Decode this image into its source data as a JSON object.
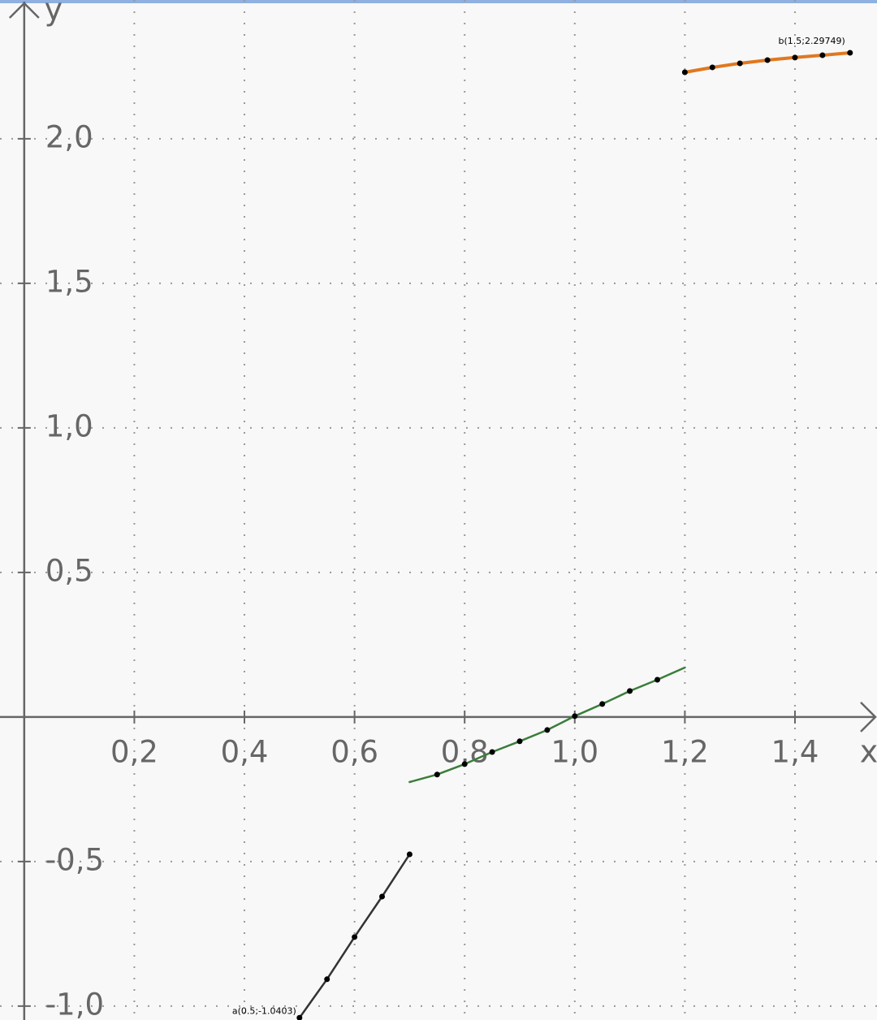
{
  "chart_data": {
    "type": "line",
    "x_label": "x",
    "y_label": "y",
    "xlim": [
      -0.044,
      1.549
    ],
    "ylim": [
      -1.048,
      2.48
    ],
    "xticks": [
      {
        "value": 0.2,
        "label": "0,2"
      },
      {
        "value": 0.4,
        "label": "0,4"
      },
      {
        "value": 0.6,
        "label": "0,6"
      },
      {
        "value": 0.8,
        "label": "0,8"
      },
      {
        "value": 1.0,
        "label": "1,0"
      },
      {
        "value": 1.2,
        "label": "1,2"
      },
      {
        "value": 1.4,
        "label": "1,4"
      }
    ],
    "yticks": [
      {
        "value": -1.0,
        "label": "-1,0"
      },
      {
        "value": -0.5,
        "label": "-0,5"
      },
      {
        "value": 0.5,
        "label": "0,5"
      },
      {
        "value": 1.0,
        "label": "1,0"
      },
      {
        "value": 1.5,
        "label": "1,5"
      },
      {
        "value": 2.0,
        "label": "2,0"
      }
    ],
    "grid": true,
    "series": [
      {
        "color": "#333333",
        "width": 2.5,
        "x": [
          0.5,
          0.55,
          0.6,
          0.65,
          0.7
        ],
        "values": [
          -1.0403,
          -0.907,
          -0.761,
          -0.621,
          -0.475
        ]
      },
      {
        "color": "#3a7d3a",
        "width": 2.5,
        "x": [
          0.7,
          0.75,
          0.8,
          0.85,
          0.9,
          0.95,
          1.0,
          1.05,
          1.1,
          1.15,
          1.2
        ],
        "values": [
          -0.225,
          -0.199,
          -0.163,
          -0.121,
          -0.084,
          -0.045,
          0.003,
          0.045,
          0.09,
          0.129,
          0.171
        ]
      },
      {
        "color": "#e07820",
        "width": 4,
        "x": [
          1.2,
          1.25,
          1.3,
          1.35,
          1.4,
          1.45,
          1.5
        ],
        "values": [
          2.23,
          2.247,
          2.261,
          2.272,
          2.281,
          2.289,
          2.29749
        ]
      }
    ],
    "points": [
      {
        "x": [
          0.5,
          0.55,
          0.6,
          0.65,
          0.7
        ],
        "values": [
          -1.0403,
          -0.907,
          -0.761,
          -0.621,
          -0.475
        ]
      },
      {
        "x": [
          0.75,
          0.8,
          0.85,
          0.9,
          0.95,
          1.0,
          1.05,
          1.1,
          1.15
        ],
        "values": [
          -0.199,
          -0.163,
          -0.121,
          -0.084,
          -0.045,
          0.003,
          0.045,
          0.09,
          0.129
        ]
      },
      {
        "x": [
          1.2,
          1.25,
          1.3,
          1.35,
          1.4,
          1.45,
          1.5
        ],
        "values": [
          2.23,
          2.247,
          2.261,
          2.272,
          2.281,
          2.289,
          2.29749
        ]
      }
    ],
    "points_color": "#000000",
    "annotations": [
      {
        "text": "a(0.5;-1.0403)",
        "x": 0.5,
        "y": -1.0403
      },
      {
        "text": "b(1.5;2.29749)",
        "x": 1.5,
        "y": 2.29749
      }
    ]
  }
}
